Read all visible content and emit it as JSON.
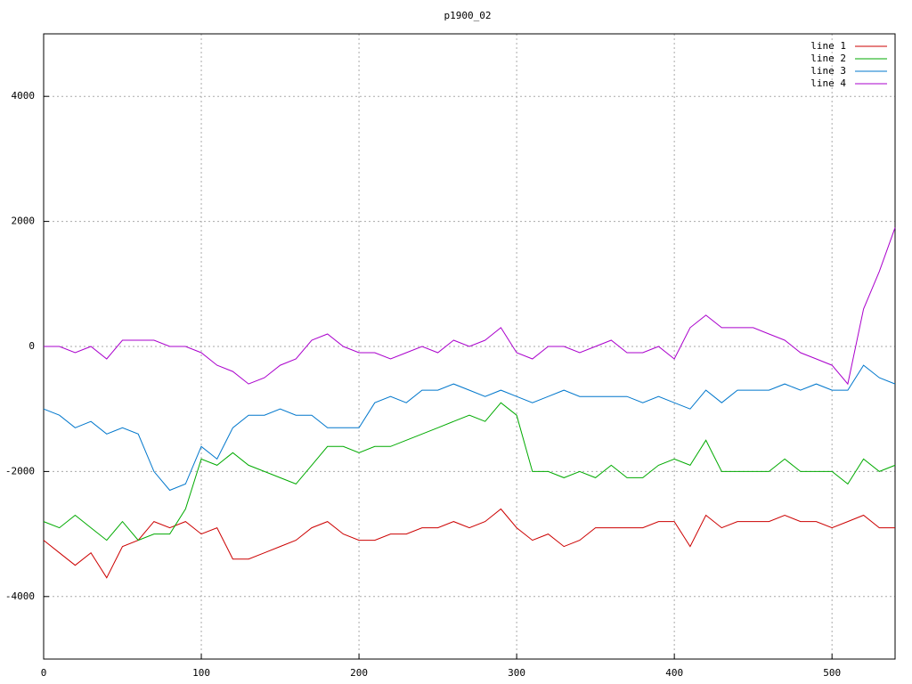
{
  "chart_data": {
    "type": "line",
    "title": "p1900_02",
    "x": [
      0,
      10,
      20,
      30,
      40,
      50,
      60,
      70,
      80,
      90,
      100,
      110,
      120,
      130,
      140,
      150,
      160,
      170,
      180,
      190,
      200,
      210,
      220,
      230,
      240,
      250,
      260,
      270,
      280,
      290,
      300,
      310,
      320,
      330,
      340,
      350,
      360,
      370,
      380,
      390,
      400,
      410,
      420,
      430,
      440,
      450,
      460,
      470,
      480,
      490,
      500,
      510,
      520,
      530,
      540
    ],
    "series": [
      {
        "name": "line 1",
        "color": "#cc0000",
        "values": [
          -3100,
          -3300,
          -3500,
          -3300,
          -3700,
          -3200,
          -3100,
          -2800,
          -2900,
          -2800,
          -3000,
          -2900,
          -3400,
          -3400,
          -3300,
          -3200,
          -3100,
          -2900,
          -2800,
          -3000,
          -3100,
          -3100,
          -3000,
          -3000,
          -2900,
          -2900,
          -2800,
          -2900,
          -2800,
          -2600,
          -2900,
          -3100,
          -3000,
          -3200,
          -3100,
          -2900,
          -2900,
          -2900,
          -2900,
          -2800,
          -2800,
          -3200,
          -2700,
          -2900,
          -2800,
          -2800,
          -2800,
          -2700,
          -2800,
          -2800,
          -2900,
          -2800,
          -2700,
          -2900,
          -2900
        ]
      },
      {
        "name": "line 2",
        "color": "#00aa00",
        "values": [
          -2800,
          -2900,
          -2700,
          -2900,
          -3100,
          -2800,
          -3100,
          -3000,
          -3000,
          -2600,
          -1800,
          -1900,
          -1700,
          -1900,
          -2000,
          -2100,
          -2200,
          -1900,
          -1600,
          -1600,
          -1700,
          -1600,
          -1600,
          -1500,
          -1400,
          -1300,
          -1200,
          -1100,
          -1200,
          -900,
          -1100,
          -2000,
          -2000,
          -2100,
          -2000,
          -2100,
          -1900,
          -2100,
          -2100,
          -1900,
          -1800,
          -1900,
          -1500,
          -2000,
          -2000,
          -2000,
          -2000,
          -1800,
          -2000,
          -2000,
          -2000,
          -2200,
          -1800,
          -2000,
          -1900
        ]
      },
      {
        "name": "line 3",
        "color": "#0077cc",
        "values": [
          -1000,
          -1100,
          -1300,
          -1200,
          -1400,
          -1300,
          -1400,
          -2000,
          -2300,
          -2200,
          -1600,
          -1800,
          -1300,
          -1100,
          -1100,
          -1000,
          -1100,
          -1100,
          -1300,
          -1300,
          -1300,
          -900,
          -800,
          -900,
          -700,
          -700,
          -600,
          -700,
          -800,
          -700,
          -800,
          -900,
          -800,
          -700,
          -800,
          -800,
          -800,
          -800,
          -900,
          -800,
          -900,
          -1000,
          -700,
          -900,
          -700,
          -700,
          -700,
          -600,
          -700,
          -600,
          -700,
          -700,
          -300,
          -500,
          -600
        ]
      },
      {
        "name": "line 4",
        "color": "#aa00cc",
        "values": [
          0,
          0,
          -100,
          0,
          -200,
          100,
          100,
          100,
          0,
          0,
          -100,
          -300,
          -400,
          -600,
          -500,
          -300,
          -200,
          100,
          200,
          0,
          -100,
          -100,
          -200,
          -100,
          0,
          -100,
          100,
          0,
          100,
          300,
          -100,
          -200,
          0,
          0,
          -100,
          0,
          100,
          -100,
          -100,
          0,
          -200,
          300,
          500,
          300,
          300,
          300,
          200,
          100,
          -100,
          -200,
          -300,
          -600,
          600,
          1200,
          1900
        ]
      }
    ],
    "xlim": [
      0,
      540
    ],
    "ylim": [
      -5000,
      5000
    ],
    "xticks": [
      0,
      100,
      200,
      300,
      400,
      500
    ],
    "yticks": [
      -4000,
      -2000,
      0,
      2000,
      4000
    ],
    "grid": true,
    "legend": "top-right"
  }
}
